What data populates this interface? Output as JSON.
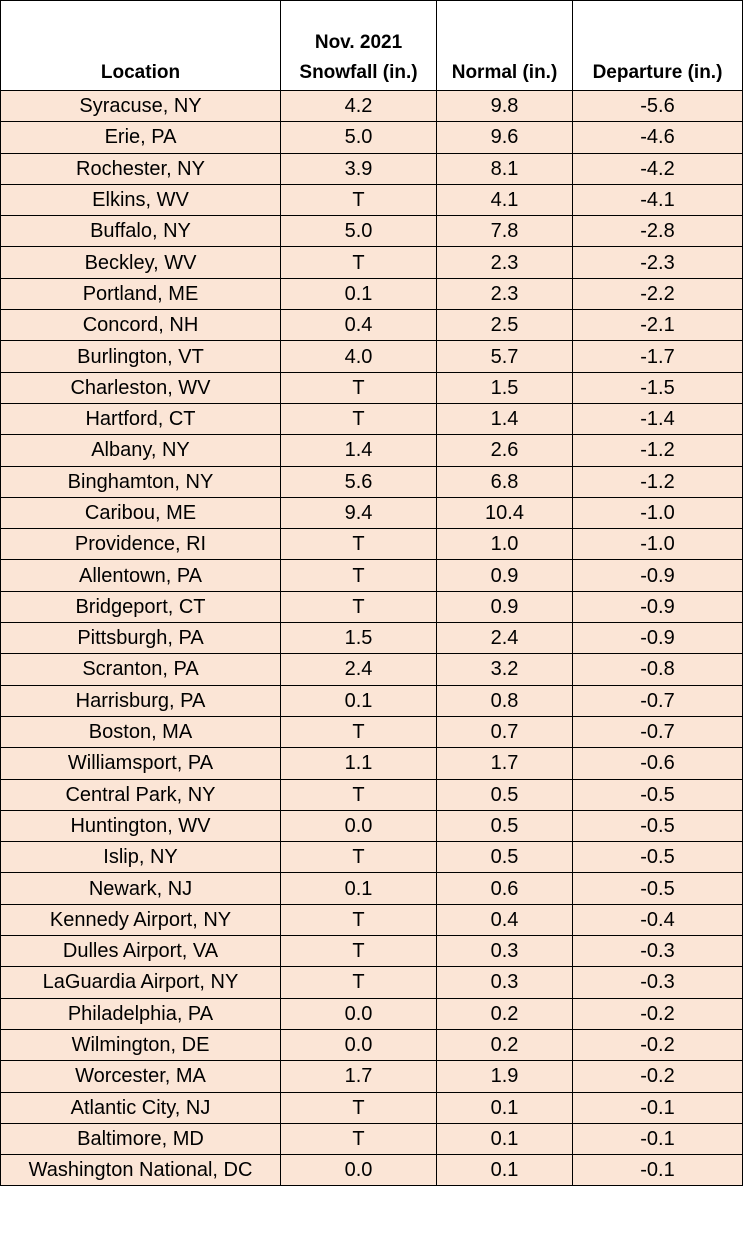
{
  "table": {
    "headers": [
      {
        "line1": "",
        "line2": "Location"
      },
      {
        "line1": "Nov. 2021",
        "line2": "Snowfall (in.)"
      },
      {
        "line1": "",
        "line2": "Normal (in.)"
      },
      {
        "line1": "",
        "line2": "Departure (in.)"
      }
    ],
    "rows": [
      [
        "Syracuse, NY",
        "4.2",
        "9.8",
        "-5.6"
      ],
      [
        "Erie, PA",
        "5.0",
        "9.6",
        "-4.6"
      ],
      [
        "Rochester, NY",
        "3.9",
        "8.1",
        "-4.2"
      ],
      [
        "Elkins, WV",
        "T",
        "4.1",
        "-4.1"
      ],
      [
        "Buffalo, NY",
        "5.0",
        "7.8",
        "-2.8"
      ],
      [
        "Beckley, WV",
        "T",
        "2.3",
        "-2.3"
      ],
      [
        "Portland, ME",
        "0.1",
        "2.3",
        "-2.2"
      ],
      [
        "Concord, NH",
        "0.4",
        "2.5",
        "-2.1"
      ],
      [
        "Burlington, VT",
        "4.0",
        "5.7",
        "-1.7"
      ],
      [
        "Charleston, WV",
        "T",
        "1.5",
        "-1.5"
      ],
      [
        "Hartford, CT",
        "T",
        "1.4",
        "-1.4"
      ],
      [
        "Albany, NY",
        "1.4",
        "2.6",
        "-1.2"
      ],
      [
        "Binghamton, NY",
        "5.6",
        "6.8",
        "-1.2"
      ],
      [
        "Caribou, ME",
        "9.4",
        "10.4",
        "-1.0"
      ],
      [
        "Providence, RI",
        "T",
        "1.0",
        "-1.0"
      ],
      [
        "Allentown, PA",
        "T",
        "0.9",
        "-0.9"
      ],
      [
        "Bridgeport, CT",
        "T",
        "0.9",
        "-0.9"
      ],
      [
        "Pittsburgh, PA",
        "1.5",
        "2.4",
        "-0.9"
      ],
      [
        "Scranton, PA",
        "2.4",
        "3.2",
        "-0.8"
      ],
      [
        "Harrisburg, PA",
        "0.1",
        "0.8",
        "-0.7"
      ],
      [
        "Boston, MA",
        "T",
        "0.7",
        "-0.7"
      ],
      [
        "Williamsport, PA",
        "1.1",
        "1.7",
        "-0.6"
      ],
      [
        "Central Park, NY",
        "T",
        "0.5",
        "-0.5"
      ],
      [
        "Huntington, WV",
        "0.0",
        "0.5",
        "-0.5"
      ],
      [
        "Islip, NY",
        "T",
        "0.5",
        "-0.5"
      ],
      [
        "Newark, NJ",
        "0.1",
        "0.6",
        "-0.5"
      ],
      [
        "Kennedy Airport, NY",
        "T",
        "0.4",
        "-0.4"
      ],
      [
        "Dulles Airport, VA",
        "T",
        "0.3",
        "-0.3"
      ],
      [
        "LaGuardia Airport, NY",
        "T",
        "0.3",
        "-0.3"
      ],
      [
        "Philadelphia, PA",
        "0.0",
        "0.2",
        "-0.2"
      ],
      [
        "Wilmington, DE",
        "0.0",
        "0.2",
        "-0.2"
      ],
      [
        "Worcester, MA",
        "1.7",
        "1.9",
        "-0.2"
      ],
      [
        "Atlantic City, NJ",
        "T",
        "0.1",
        "-0.1"
      ],
      [
        "Baltimore, MD",
        "T",
        "0.1",
        "-0.1"
      ],
      [
        "Washington National, DC",
        "0.0",
        "0.1",
        "-0.1"
      ]
    ]
  },
  "colors": {
    "row_background": "#fbe5d6",
    "header_background": "#ffffff",
    "border": "#000000"
  }
}
